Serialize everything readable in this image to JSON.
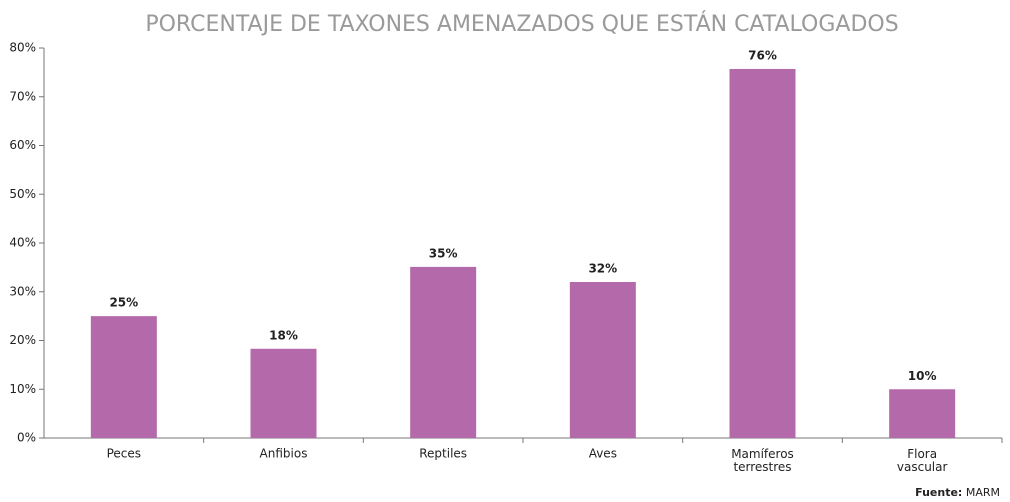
{
  "chart_data": {
    "type": "bar",
    "title": "PORCENTAJE DE TAXONES AMENAZADOS QUE ESTÁN CATALOGADOS",
    "categories": [
      "Peces",
      "Anfibios",
      "Reptiles",
      "Aves",
      "Mamíferos terrestres",
      "Flora vascular"
    ],
    "values": [
      25,
      18.3,
      35.1,
      32,
      75.7,
      10
    ],
    "value_labels": [
      "25%",
      "18%",
      "35%",
      "32%",
      "76%",
      "10%"
    ],
    "color": "#b46aaa",
    "ylim": [
      0,
      80
    ],
    "yticks": [
      {
        "value": 0,
        "label": "0%"
      },
      {
        "value": 10,
        "label": "10%"
      },
      {
        "value": 20,
        "label": "20%"
      },
      {
        "value": 30,
        "label": "30%"
      },
      {
        "value": 40,
        "label": "40%"
      },
      {
        "value": 50,
        "label": "50%"
      },
      {
        "value": 60,
        "label": "60%"
      },
      {
        "value": 70,
        "label": "70%"
      },
      {
        "value": 80,
        "label": "80%"
      }
    ],
    "grid": false,
    "source": {
      "label": "Fuente:",
      "text": "MARM"
    }
  }
}
